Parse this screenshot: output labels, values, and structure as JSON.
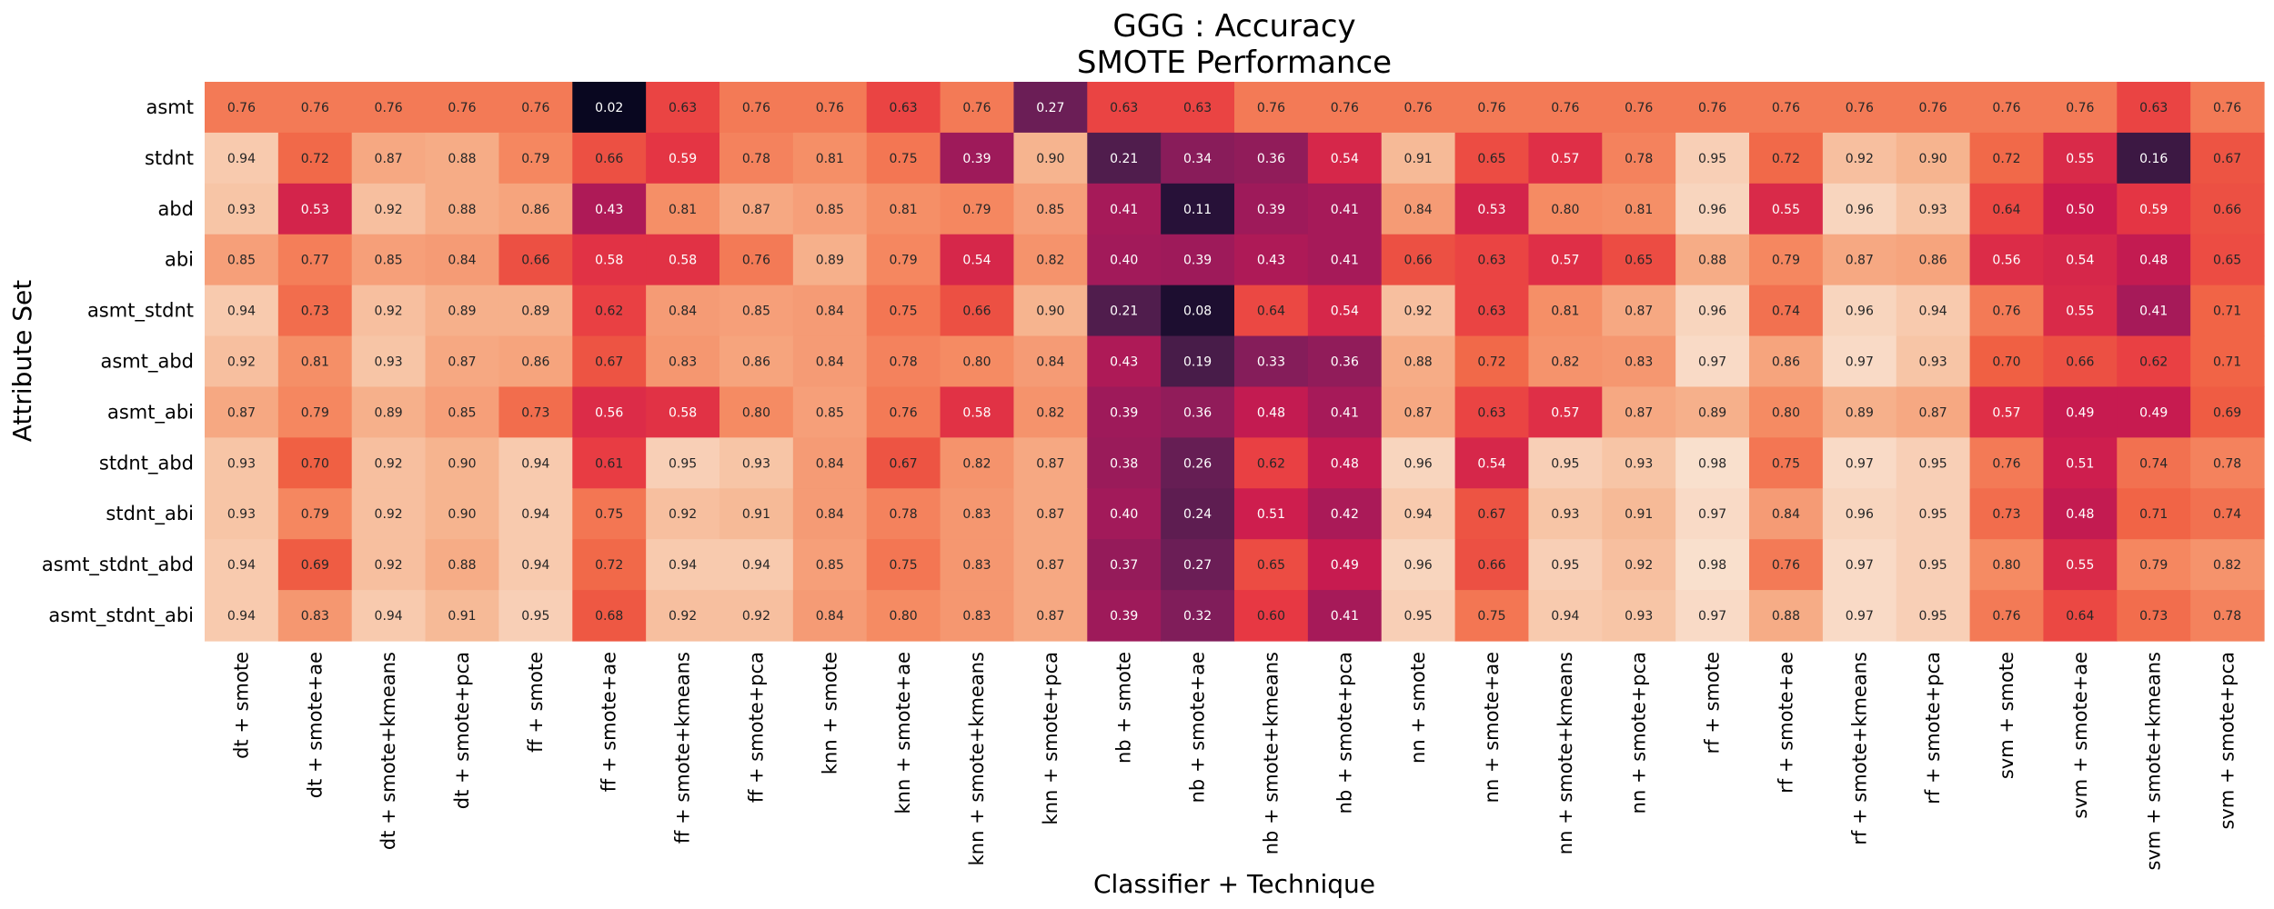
{
  "chart_data": {
    "type": "heatmap",
    "title": "GGG : Accuracy",
    "subtitle": "SMOTE Performance",
    "xlabel": "Classifier + Technique",
    "ylabel": "Attribute Set",
    "colormap": "rocket",
    "value_range": [
      0,
      1
    ],
    "x": [
      "dt + smote",
      "dt + smote+ae",
      "dt + smote+kmeans",
      "dt + smote+pca",
      "ff + smote",
      "ff + smote+ae",
      "ff + smote+kmeans",
      "ff + smote+pca",
      "knn + smote",
      "knn + smote+ae",
      "knn + smote+kmeans",
      "knn + smote+pca",
      "nb + smote",
      "nb + smote+ae",
      "nb + smote+kmeans",
      "nb + smote+pca",
      "nn + smote",
      "nn + smote+ae",
      "nn + smote+kmeans",
      "nn + smote+pca",
      "rf + smote",
      "rf + smote+ae",
      "rf + smote+kmeans",
      "rf + smote+pca",
      "svm + smote",
      "svm + smote+ae",
      "svm + smote+kmeans",
      "svm + smote+pca"
    ],
    "y": [
      "asmt",
      "stdnt",
      "abd",
      "abi",
      "asmt_stdnt",
      "asmt_abd",
      "asmt_abi",
      "stdnt_abd",
      "stdnt_abi",
      "asmt_stdnt_abd",
      "asmt_stdnt_abi"
    ],
    "values": [
      [
        "0.76",
        "0.76",
        "0.76",
        "0.76",
        "0.76",
        "0.02",
        "0.63",
        "0.76",
        "0.76",
        "0.63",
        "0.76",
        "0.27",
        "0.63",
        "0.63",
        "0.76",
        "0.76",
        "0.76",
        "0.76",
        "0.76",
        "0.76",
        "0.76",
        "0.76",
        "0.76",
        "0.76",
        "0.76",
        "0.76",
        "0.63",
        "0.76"
      ],
      [
        "0.94",
        "0.72",
        "0.87",
        "0.88",
        "0.79",
        "0.66",
        "0.59",
        "0.78",
        "0.81",
        "0.75",
        "0.39",
        "0.90",
        "0.21",
        "0.34",
        "0.36",
        "0.54",
        "0.91",
        "0.65",
        "0.57",
        "0.78",
        "0.95",
        "0.72",
        "0.92",
        "0.90",
        "0.72",
        "0.55",
        "0.16",
        "0.67"
      ],
      [
        "0.93",
        "0.53",
        "0.92",
        "0.88",
        "0.86",
        "0.43",
        "0.81",
        "0.87",
        "0.85",
        "0.81",
        "0.79",
        "0.85",
        "0.41",
        "0.11",
        "0.39",
        "0.41",
        "0.84",
        "0.53",
        "0.80",
        "0.81",
        "0.96",
        "0.55",
        "0.96",
        "0.93",
        "0.64",
        "0.50",
        "0.59",
        "0.66"
      ],
      [
        "0.85",
        "0.77",
        "0.85",
        "0.84",
        "0.66",
        "0.58",
        "0.58",
        "0.76",
        "0.89",
        "0.79",
        "0.54",
        "0.82",
        "0.40",
        "0.39",
        "0.43",
        "0.41",
        "0.66",
        "0.63",
        "0.57",
        "0.65",
        "0.88",
        "0.79",
        "0.87",
        "0.86",
        "0.56",
        "0.54",
        "0.48",
        "0.65"
      ],
      [
        "0.94",
        "0.73",
        "0.92",
        "0.89",
        "0.89",
        "0.62",
        "0.84",
        "0.85",
        "0.84",
        "0.75",
        "0.66",
        "0.90",
        "0.21",
        "0.08",
        "0.64",
        "0.54",
        "0.92",
        "0.63",
        "0.81",
        "0.87",
        "0.96",
        "0.74",
        "0.96",
        "0.94",
        "0.76",
        "0.55",
        "0.41",
        "0.71"
      ],
      [
        "0.92",
        "0.81",
        "0.93",
        "0.87",
        "0.86",
        "0.67",
        "0.83",
        "0.86",
        "0.84",
        "0.78",
        "0.80",
        "0.84",
        "0.43",
        "0.19",
        "0.33",
        "0.36",
        "0.88",
        "0.72",
        "0.82",
        "0.83",
        "0.97",
        "0.86",
        "0.97",
        "0.93",
        "0.70",
        "0.66",
        "0.62",
        "0.71"
      ],
      [
        "0.87",
        "0.79",
        "0.89",
        "0.85",
        "0.73",
        "0.56",
        "0.58",
        "0.80",
        "0.85",
        "0.76",
        "0.58",
        "0.82",
        "0.39",
        "0.36",
        "0.48",
        "0.41",
        "0.87",
        "0.63",
        "0.57",
        "0.87",
        "0.89",
        "0.80",
        "0.89",
        "0.87",
        "0.57",
        "0.49",
        "0.49",
        "0.69"
      ],
      [
        "0.93",
        "0.70",
        "0.92",
        "0.90",
        "0.94",
        "0.61",
        "0.95",
        "0.93",
        "0.84",
        "0.67",
        "0.82",
        "0.87",
        "0.38",
        "0.26",
        "0.62",
        "0.48",
        "0.96",
        "0.54",
        "0.95",
        "0.93",
        "0.98",
        "0.75",
        "0.97",
        "0.95",
        "0.76",
        "0.51",
        "0.74",
        "0.78"
      ],
      [
        "0.93",
        "0.79",
        "0.92",
        "0.90",
        "0.94",
        "0.75",
        "0.92",
        "0.91",
        "0.84",
        "0.78",
        "0.83",
        "0.87",
        "0.40",
        "0.24",
        "0.51",
        "0.42",
        "0.94",
        "0.67",
        "0.93",
        "0.91",
        "0.97",
        "0.84",
        "0.96",
        "0.95",
        "0.73",
        "0.48",
        "0.71",
        "0.74"
      ],
      [
        "0.94",
        "0.69",
        "0.92",
        "0.88",
        "0.94",
        "0.72",
        "0.94",
        "0.94",
        "0.85",
        "0.75",
        "0.83",
        "0.87",
        "0.37",
        "0.27",
        "0.65",
        "0.49",
        "0.96",
        "0.66",
        "0.95",
        "0.92",
        "0.98",
        "0.76",
        "0.97",
        "0.95",
        "0.80",
        "0.55",
        "0.79",
        "0.82"
      ],
      [
        "0.94",
        "0.83",
        "0.94",
        "0.91",
        "0.95",
        "0.68",
        "0.92",
        "0.92",
        "0.84",
        "0.80",
        "0.83",
        "0.87",
        "0.39",
        "0.32",
        "0.60",
        "0.41",
        "0.95",
        "0.75",
        "0.94",
        "0.93",
        "0.97",
        "0.88",
        "0.97",
        "0.95",
        "0.76",
        "0.64",
        "0.73",
        "0.78"
      ]
    ]
  }
}
